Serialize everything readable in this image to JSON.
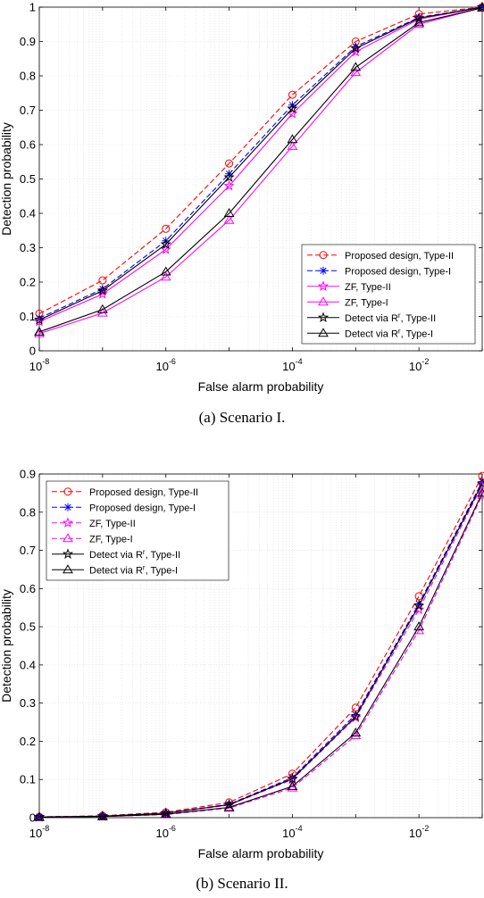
{
  "chart_data": [
    {
      "type": "line",
      "caption": "(a)  Scenario I.",
      "xlabel": "False alarm probability",
      "ylabel": "Detection probability",
      "xscale": "log",
      "x": [
        1e-08,
        1e-07,
        1e-06,
        1e-05,
        0.0001,
        0.001,
        0.01,
        0.1
      ],
      "xlim": [
        1e-08,
        0.1
      ],
      "ylim": [
        0,
        1
      ],
      "yticks": [
        0,
        0.1,
        0.2,
        0.3,
        0.4,
        0.5,
        0.6,
        0.7,
        0.8,
        0.9,
        1
      ],
      "yticklabels": [
        "0",
        "0.1",
        "0.2",
        "0.3",
        "0.4",
        "0.5",
        "0.6",
        "0.7",
        "0.8",
        "0.9",
        "1"
      ],
      "xtick_exponents": [
        "-8",
        "-6",
        "-4",
        "-2"
      ],
      "grid": true,
      "legend_position": "bottom-right",
      "series": [
        {
          "name": "Proposed design, Type-II",
          "color": "#ff0000",
          "dash": "dashed",
          "marker": "circle",
          "values": [
            0.108,
            0.205,
            0.355,
            0.545,
            0.745,
            0.9,
            0.98,
            1.0
          ]
        },
        {
          "name": "Proposed design, Type-I",
          "color": "#0000ff",
          "dash": "dashed",
          "marker": "asterisk",
          "values": [
            0.095,
            0.18,
            0.32,
            0.515,
            0.715,
            0.885,
            0.97,
            1.0
          ]
        },
        {
          "name": "ZF, Type-II",
          "color": "#ff00ff",
          "dash": "solid",
          "marker": "star",
          "values": [
            0.085,
            0.165,
            0.295,
            0.48,
            0.69,
            0.87,
            0.965,
            1.0
          ]
        },
        {
          "name": "ZF, Type-I",
          "color": "#ff00ff",
          "dash": "solid",
          "marker": "triangle",
          "values": [
            0.05,
            0.11,
            0.215,
            0.38,
            0.595,
            0.81,
            0.95,
            0.998
          ]
        },
        {
          "name": "Detect via R^r, Type-II",
          "color": "#000000",
          "dash": "solid",
          "marker": "star",
          "values": [
            0.09,
            0.175,
            0.31,
            0.505,
            0.705,
            0.88,
            0.968,
            1.0
          ]
        },
        {
          "name": "Detect via R^r, Type-I",
          "color": "#000000",
          "dash": "solid",
          "marker": "triangle",
          "values": [
            0.055,
            0.12,
            0.23,
            0.4,
            0.615,
            0.825,
            0.955,
            0.998
          ]
        }
      ],
      "legend_labels": [
        {
          "main": "Proposed design, Type-II"
        },
        {
          "main": "Proposed design, Type-I"
        },
        {
          "main": "ZF, Type-II"
        },
        {
          "main": "ZF, Type-I"
        },
        {
          "pre": "Detect via R",
          "sup": "r",
          "post": ",  Type-II"
        },
        {
          "pre": "Detect via R",
          "sup": "r",
          "post": ", Type-I"
        }
      ]
    },
    {
      "type": "line",
      "caption": "(b)  Scenario II.",
      "xlabel": "False alarm probability",
      "ylabel": "Detection probability",
      "xscale": "log",
      "x": [
        1e-08,
        1e-07,
        1e-06,
        1e-05,
        0.0001,
        0.001,
        0.01,
        0.1
      ],
      "xlim": [
        1e-08,
        0.1
      ],
      "ylim": [
        0,
        0.9
      ],
      "yticks": [
        0,
        0.1,
        0.2,
        0.3,
        0.4,
        0.5,
        0.6,
        0.7,
        0.8,
        0.9
      ],
      "yticklabels": [
        "0",
        "0.1",
        "0.2",
        "0.3",
        "0.4",
        "0.5",
        "0.6",
        "0.7",
        "0.8",
        "0.9"
      ],
      "xtick_exponents": [
        "-8",
        "-6",
        "-4",
        "-2"
      ],
      "grid": true,
      "legend_position": "top-left",
      "series": [
        {
          "name": "Proposed design, Type-II",
          "color": "#ff0000",
          "dash": "dashed",
          "marker": "circle",
          "values": [
            0.002,
            0.005,
            0.014,
            0.04,
            0.115,
            0.288,
            0.58,
            0.895
          ]
        },
        {
          "name": "Proposed design, Type-I",
          "color": "#0000ff",
          "dash": "dashed",
          "marker": "asterisk",
          "values": [
            0.002,
            0.004,
            0.012,
            0.035,
            0.105,
            0.27,
            0.56,
            0.88
          ]
        },
        {
          "name": "ZF, Type-II",
          "color": "#ff00ff",
          "dash": "dashed",
          "marker": "star",
          "values": [
            0.002,
            0.004,
            0.011,
            0.033,
            0.1,
            0.262,
            0.545,
            0.87
          ]
        },
        {
          "name": "ZF, Type-I",
          "color": "#ff00ff",
          "dash": "dashed",
          "marker": "triangle",
          "values": [
            0.001,
            0.003,
            0.008,
            0.025,
            0.078,
            0.215,
            0.49,
            0.845
          ]
        },
        {
          "name": "Detect via R^r, Type-II",
          "color": "#000000",
          "dash": "solid",
          "marker": "star",
          "values": [
            0.002,
            0.004,
            0.012,
            0.034,
            0.102,
            0.265,
            0.555,
            0.875
          ]
        },
        {
          "name": "Detect via R^r, Type-I",
          "color": "#000000",
          "dash": "solid",
          "marker": "triangle",
          "values": [
            0.001,
            0.003,
            0.009,
            0.027,
            0.082,
            0.222,
            0.5,
            0.85
          ]
        }
      ],
      "legend_labels": [
        {
          "main": "Proposed design, Type-II"
        },
        {
          "main": "Proposed design, Type-I"
        },
        {
          "main": "ZF, Type-II"
        },
        {
          "main": "ZF, Type-I"
        },
        {
          "pre": "Detect via R",
          "sup": "r",
          "post": ",  Type-II"
        },
        {
          "pre": "Detect via R",
          "sup": "r",
          "post": ", Type-I"
        }
      ]
    }
  ]
}
